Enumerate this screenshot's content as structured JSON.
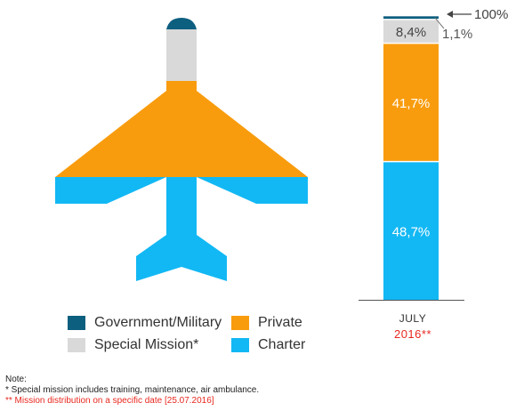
{
  "chart_data": {
    "type": "bar",
    "stacked": true,
    "categories": [
      "JULY 2016**"
    ],
    "category_label": "JULY",
    "category_year": "2016**",
    "series": [
      {
        "name": "Charter",
        "values": [
          48.7
        ],
        "label": "48,7%",
        "color": "#12b8f4"
      },
      {
        "name": "Private",
        "values": [
          41.7
        ],
        "label": "41,7%",
        "color": "#f89c0e"
      },
      {
        "name": "Special Mission*",
        "values": [
          8.4
        ],
        "label": "8,4%",
        "color": "#d9d9d9"
      },
      {
        "name": "Government/Military",
        "values": [
          1.1
        ],
        "label": "1,1%",
        "color": "#0d5f7f"
      }
    ],
    "total_label": "100%",
    "ylim": [
      0,
      100
    ],
    "legend_position": "bottom-left",
    "grid": false
  },
  "legend": [
    {
      "label": "Government/Military",
      "color": "#0d5f7f"
    },
    {
      "label": "Private",
      "color": "#f89c0e"
    },
    {
      "label": "Special Mission*",
      "color": "#d9d9d9"
    },
    {
      "label": "Charter",
      "color": "#12b8f4"
    }
  ],
  "notes": {
    "title": "Note:",
    "line1": "* Special mission includes training, maintenance, air ambulance.",
    "line2": "** Mission distribution on a specific date [25.07.2016]"
  },
  "icon": "airplane-icon"
}
